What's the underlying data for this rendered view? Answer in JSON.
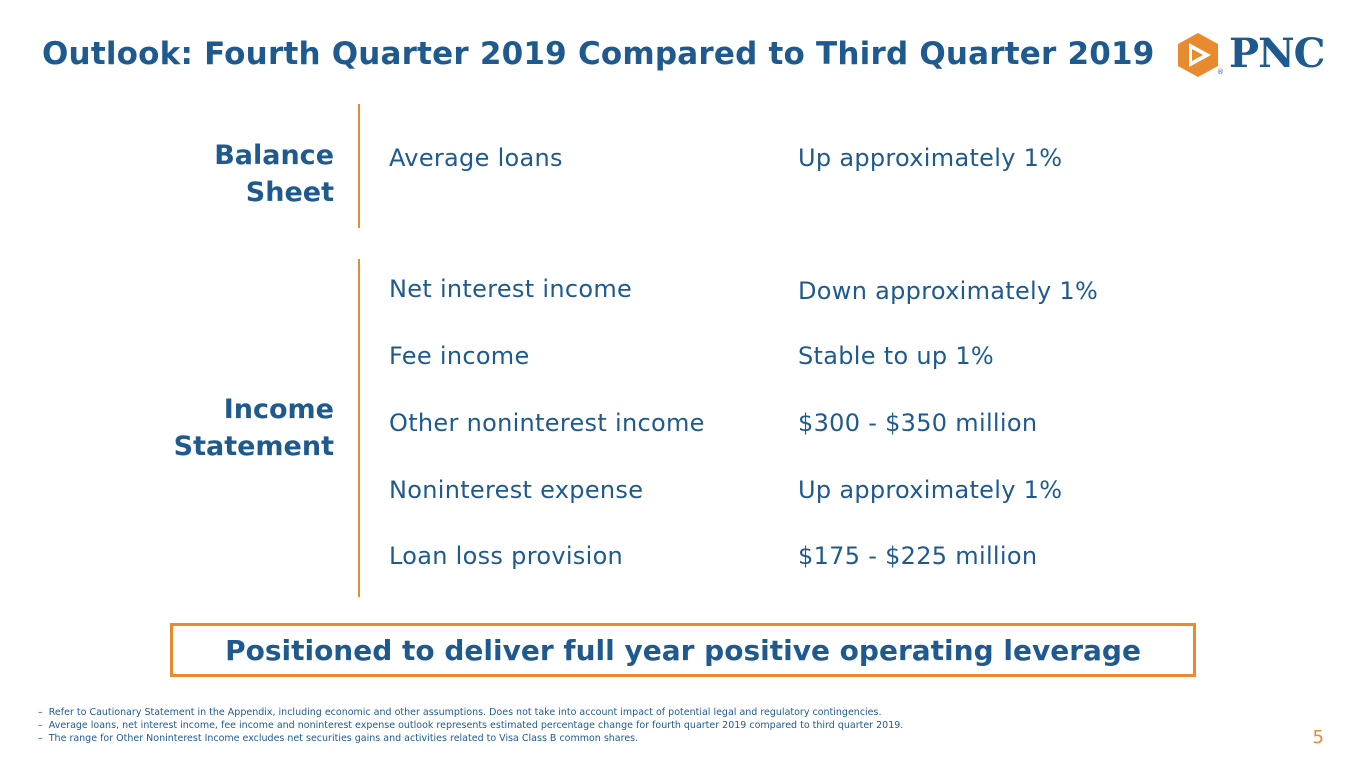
{
  "header": {
    "title": "Outlook: Fourth Quarter 2019 Compared to Third Quarter 2019",
    "logo_text": "PNC",
    "logo_reg": "®",
    "colors": {
      "brand_blue": "#1f5a8f",
      "accent_orange": "#e88a2e"
    }
  },
  "balance_sheet": {
    "label_line1": "Balance",
    "label_line2": "Sheet",
    "rows": [
      {
        "label": "Average loans",
        "value": "Up approximately 1%"
      }
    ]
  },
  "income_statement": {
    "label_line1": "Income",
    "label_line2": "Statement",
    "rows": [
      {
        "label": "Net interest income",
        "value": "Down approximately 1%"
      },
      {
        "label": "Fee income",
        "value": "Stable to up 1%"
      },
      {
        "label": "Other noninterest income",
        "value": "$300 - $350 million"
      },
      {
        "label": "Noninterest expense",
        "value": "Up approximately 1%"
      },
      {
        "label": "Loan loss provision",
        "value": "$175 - $225 million"
      }
    ]
  },
  "callout": {
    "text": "Positioned to deliver full year positive operating leverage"
  },
  "footnotes": {
    "bullet": "–",
    "items": [
      "Refer to Cautionary Statement in the Appendix, including economic and other assumptions. Does not take into account impact of potential legal and regulatory contingencies.",
      "Average loans, net interest income, fee income and noninterest expense outlook represents estimated percentage change for fourth quarter 2019 compared to third quarter 2019.",
      "The range for Other Noninterest Income excludes net securities gains and activities related to Visa Class B common shares."
    ]
  },
  "page_number": "5"
}
